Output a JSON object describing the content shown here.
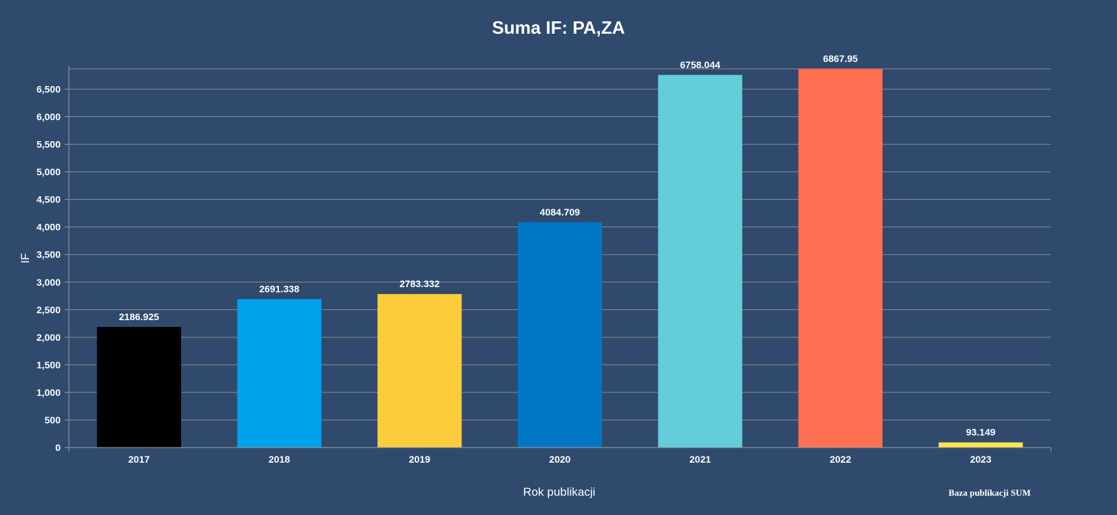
{
  "chart_data": {
    "type": "bar",
    "title": "Suma IF: PA,ZA",
    "xlabel": "Rok publikacji",
    "ylabel": "IF",
    "credit": "Baza publikacji SUM",
    "categories": [
      "2017",
      "2018",
      "2019",
      "2020",
      "2021",
      "2022",
      "2023"
    ],
    "values": [
      2186.925,
      2691.338,
      2783.332,
      4084.709,
      6758.044,
      6867.95,
      93.149
    ],
    "value_labels": [
      "2186.925",
      "2691.338",
      "2783.332",
      "4084.709",
      "6758.044",
      "6867.95",
      "93.149"
    ],
    "colors": [
      "#000000",
      "#00a2ed",
      "#fccc3b",
      "#0077c5",
      "#63cdd9",
      "#ff6f51",
      "#fce44c"
    ],
    "ylim": [
      0,
      6867.95
    ],
    "yticks": [
      0,
      500,
      1000,
      1500,
      2000,
      2500,
      3000,
      3500,
      4000,
      4500,
      5000,
      5500,
      6000,
      6500
    ],
    "ytick_labels": [
      "0",
      "500",
      "1,000",
      "1,500",
      "2,000",
      "2,500",
      "3,000",
      "3,500",
      "4,000",
      "4,500",
      "5,000",
      "5,500",
      "6,000",
      "6,500"
    ],
    "grid": true,
    "legend": "none",
    "background": "#2f4a6d"
  }
}
